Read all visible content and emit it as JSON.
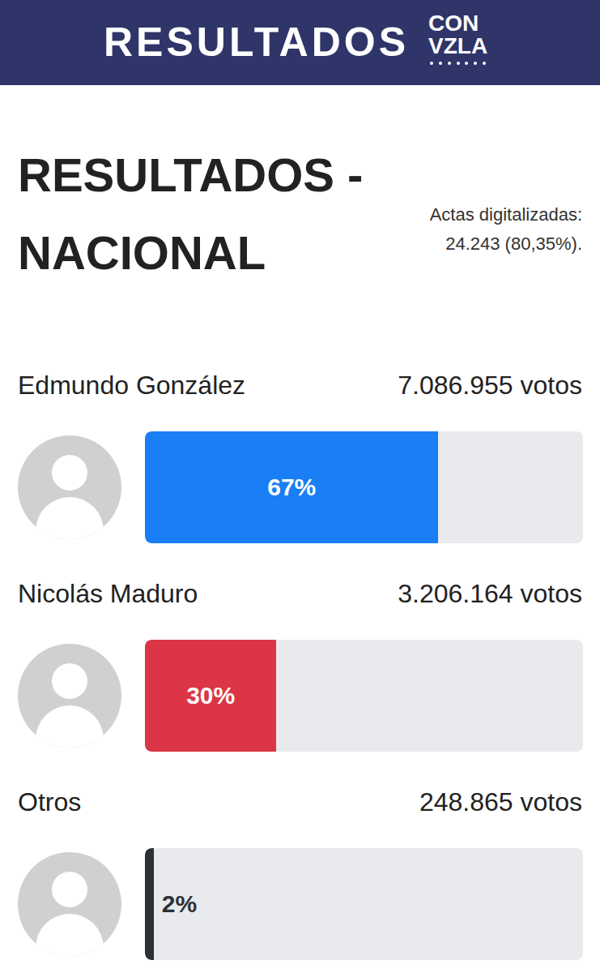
{
  "header": {
    "title": "RESULTADOS",
    "logo": [
      "CON",
      "VZLA"
    ]
  },
  "chart_data": {
    "type": "bar",
    "orientation": "horizontal",
    "title": "RESULTADOS - NACIONAL",
    "annotations": [
      "Actas digitalizadas:",
      "24.243 (80,35%)."
    ],
    "categories": [
      "Edmundo González",
      "Nicolás Maduro",
      "Otros"
    ],
    "values": [
      67,
      30,
      2
    ],
    "value_labels": [
      "67%",
      "30%",
      "2%"
    ],
    "vote_labels": [
      "7.086.955 votos",
      "3.206.164 votos",
      "248.865 votos"
    ],
    "colors": [
      "#1a7ef5",
      "#dc3545",
      "#2d3036"
    ],
    "xlim": [
      0,
      100
    ],
    "data_labels": true,
    "tick_labels": false,
    "grid": false
  }
}
